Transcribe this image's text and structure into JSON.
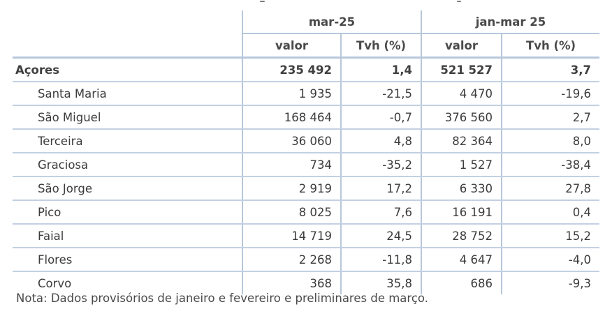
{
  "table": {
    "group_headers": [
      "mar-25",
      "jan-mar 25"
    ],
    "sub_headers": [
      "valor",
      "Tvh (%)",
      "valor",
      "Tvh (%)"
    ],
    "total": {
      "name": "Açores",
      "v1": "235 492",
      "t1": "1,4",
      "v2": "521 527",
      "t2": "3,7"
    },
    "rows": [
      {
        "name": "Santa Maria",
        "v1": "1 935",
        "t1": "-21,5",
        "v2": "4 470",
        "t2": "-19,6"
      },
      {
        "name": "São Miguel",
        "v1": "168 464",
        "t1": "-0,7",
        "v2": "376 560",
        "t2": "2,7"
      },
      {
        "name": "Terceira",
        "v1": "36 060",
        "t1": "4,8",
        "v2": "82 364",
        "t2": "8,0"
      },
      {
        "name": "Graciosa",
        "v1": "734",
        "t1": "-35,2",
        "v2": "1 527",
        "t2": "-38,4"
      },
      {
        "name": "São Jorge",
        "v1": "2 919",
        "t1": "17,2",
        "v2": "6 330",
        "t2": "27,8"
      },
      {
        "name": "Pico",
        "v1": "8 025",
        "t1": "7,6",
        "v2": "16 191",
        "t2": "0,4"
      },
      {
        "name": "Faial",
        "v1": "14 719",
        "t1": "24,5",
        "v2": "28 752",
        "t2": "15,2"
      },
      {
        "name": "Flores",
        "v1": "2 268",
        "t1": "-11,8",
        "v2": "4 647",
        "t2": "-4,0"
      },
      {
        "name": "Corvo",
        "v1": "368",
        "t1": "35,8",
        "v2": "686",
        "t2": "-9,3"
      }
    ]
  },
  "note": "Nota: Dados provisórios de janeiro e fevereiro e preliminares de março."
}
